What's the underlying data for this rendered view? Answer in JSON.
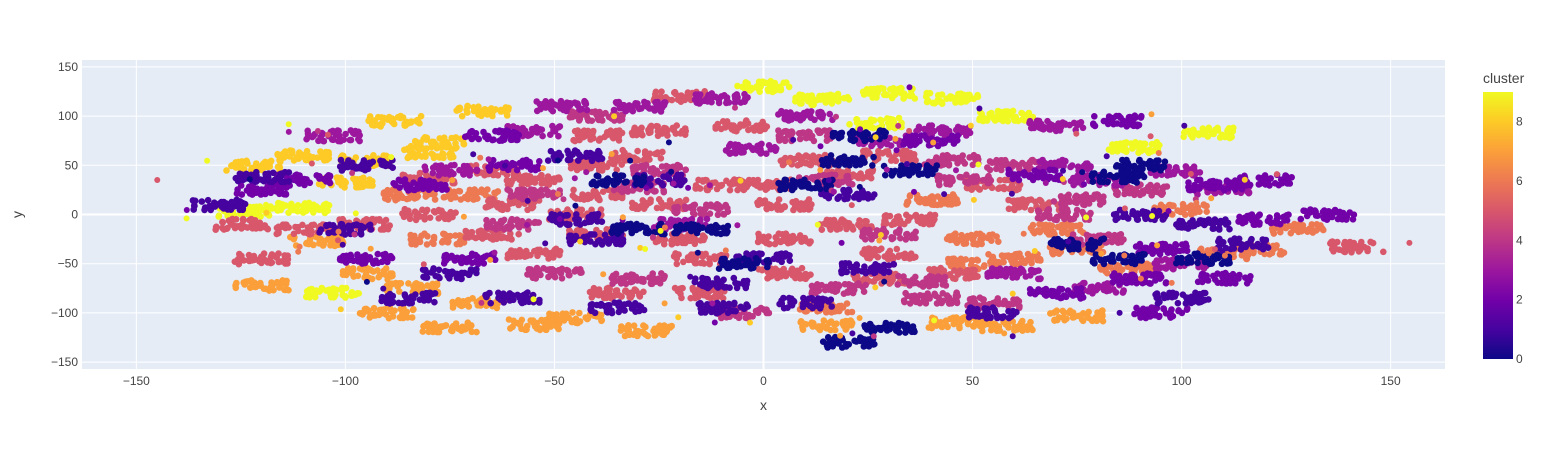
{
  "chart_data": {
    "type": "scatter",
    "xlabel": "x",
    "ylabel": "y",
    "xlim": [
      -163,
      163
    ],
    "ylim": [
      -157,
      157
    ],
    "xticks": [
      -150,
      -100,
      -50,
      0,
      50,
      100,
      150
    ],
    "yticks": [
      -150,
      -100,
      -50,
      0,
      50,
      100,
      150
    ],
    "grid": true,
    "plot_background": "#E5ECF6",
    "colorbar": {
      "title": "cluster",
      "range": [
        0,
        9
      ],
      "ticks": [
        0,
        2,
        4,
        6,
        8
      ],
      "colorscale": [
        "#0d0887",
        "#46039f",
        "#7201a8",
        "#9c179e",
        "#bd3786",
        "#d8576b",
        "#ed7953",
        "#fb9f3a",
        "#fdca26",
        "#f0f921"
      ]
    },
    "blobs": [
      {
        "x": 0,
        "y": 130,
        "c": 9
      },
      {
        "x": 14,
        "y": 117,
        "c": 9
      },
      {
        "x": 30,
        "y": 123,
        "c": 9
      },
      {
        "x": 45,
        "y": 118,
        "c": 9
      },
      {
        "x": 58,
        "y": 100,
        "c": 9
      },
      {
        "x": 27,
        "y": 93,
        "c": 9
      },
      {
        "x": 89,
        "y": 68,
        "c": 9
      },
      {
        "x": 106,
        "y": 83,
        "c": 9
      },
      {
        "x": -110,
        "y": 7,
        "c": 9
      },
      {
        "x": -103,
        "y": -79,
        "c": 9
      },
      {
        "x": -124,
        "y": 3,
        "c": 9
      },
      {
        "x": -67,
        "y": 105,
        "c": 8
      },
      {
        "x": -88,
        "y": 95,
        "c": 8
      },
      {
        "x": -110,
        "y": 60,
        "c": 8
      },
      {
        "x": -95,
        "y": 55,
        "c": 8
      },
      {
        "x": -78,
        "y": 73,
        "c": 8
      },
      {
        "x": -100,
        "y": 33,
        "c": 8
      },
      {
        "x": -122,
        "y": 50,
        "c": 8
      },
      {
        "x": -80,
        "y": 63,
        "c": 8
      },
      {
        "x": -28,
        "y": -118,
        "c": 7
      },
      {
        "x": -55,
        "y": -112,
        "c": 7
      },
      {
        "x": -68,
        "y": -90,
        "c": 7
      },
      {
        "x": -45,
        "y": -105,
        "c": 7
      },
      {
        "x": -75,
        "y": -115,
        "c": 7
      },
      {
        "x": -90,
        "y": -100,
        "c": 7
      },
      {
        "x": 46,
        "y": -110,
        "c": 7
      },
      {
        "x": 58,
        "y": -113,
        "c": 7
      },
      {
        "x": 75,
        "y": -103,
        "c": 7
      },
      {
        "x": -95,
        "y": -60,
        "c": 7
      },
      {
        "x": -107,
        "y": -27,
        "c": 7
      },
      {
        "x": 15,
        "y": -113,
        "c": 7
      },
      {
        "x": -120,
        "y": -72,
        "c": 7
      },
      {
        "x": -84,
        "y": -75,
        "c": 7
      },
      {
        "x": 118,
        "y": -35,
        "c": 6
      },
      {
        "x": 50,
        "y": -25,
        "c": 6
      },
      {
        "x": 60,
        "y": -45,
        "c": 6
      },
      {
        "x": 75,
        "y": -35,
        "c": 6
      },
      {
        "x": 50,
        "y": -50,
        "c": 6
      },
      {
        "x": 70,
        "y": -15,
        "c": 6
      },
      {
        "x": 100,
        "y": 5,
        "c": 6
      },
      {
        "x": -70,
        "y": 20,
        "c": 6
      },
      {
        "x": -85,
        "y": 20,
        "c": 6
      },
      {
        "x": 40,
        "y": 15,
        "c": 6
      },
      {
        "x": 128,
        "y": -15,
        "c": 6
      },
      {
        "x": 110,
        "y": -40,
        "c": 6
      },
      {
        "x": 15,
        "y": -95,
        "c": 6
      },
      {
        "x": -78,
        "y": -25,
        "c": 6
      },
      {
        "x": 87,
        "y": -55,
        "c": 6
      },
      {
        "x": -10,
        "y": 30,
        "c": 5
      },
      {
        "x": -25,
        "y": 10,
        "c": 5
      },
      {
        "x": 5,
        "y": 10,
        "c": 5
      },
      {
        "x": 20,
        "y": -10,
        "c": 5
      },
      {
        "x": -40,
        "y": 50,
        "c": 5
      },
      {
        "x": -55,
        "y": 35,
        "c": 5
      },
      {
        "x": 10,
        "y": 55,
        "c": 5
      },
      {
        "x": 35,
        "y": -5,
        "c": 5
      },
      {
        "x": -60,
        "y": 10,
        "c": 5
      },
      {
        "x": -45,
        "y": 0,
        "c": 5
      },
      {
        "x": -15,
        "y": -45,
        "c": 5
      },
      {
        "x": 5,
        "y": -25,
        "c": 5
      },
      {
        "x": -80,
        "y": 0,
        "c": 5
      },
      {
        "x": -95,
        "y": -10,
        "c": 5
      },
      {
        "x": -110,
        "y": -15,
        "c": 5
      },
      {
        "x": -125,
        "y": -10,
        "c": 5
      },
      {
        "x": -120,
        "y": -45,
        "c": 5
      },
      {
        "x": 142,
        "y": -33,
        "c": 5
      },
      {
        "x": -25,
        "y": 85,
        "c": 5
      },
      {
        "x": -5,
        "y": 90,
        "c": 5
      },
      {
        "x": -40,
        "y": 80,
        "c": 5
      },
      {
        "x": 20,
        "y": 40,
        "c": 5
      },
      {
        "x": 30,
        "y": 60,
        "c": 5
      },
      {
        "x": 55,
        "y": 30,
        "c": 5
      },
      {
        "x": 65,
        "y": 10,
        "c": 5
      },
      {
        "x": -15,
        "y": -80,
        "c": 5
      },
      {
        "x": 30,
        "y": -40,
        "c": 5
      },
      {
        "x": 5,
        "y": -60,
        "c": 5
      },
      {
        "x": -55,
        "y": -40,
        "c": 5
      },
      {
        "x": -35,
        "y": -80,
        "c": 5
      },
      {
        "x": -30,
        "y": 60,
        "c": 5
      },
      {
        "x": -20,
        "y": 120,
        "c": 5
      },
      {
        "x": 28,
        "y": -65,
        "c": 5
      },
      {
        "x": -65,
        "y": -20,
        "c": 5
      },
      {
        "x": -65,
        "y": 45,
        "c": 5
      },
      {
        "x": -80,
        "y": 37,
        "c": 5
      },
      {
        "x": -40,
        "y": 20,
        "c": 5
      },
      {
        "x": -40,
        "y": -20,
        "c": 5
      },
      {
        "x": 45,
        "y": -60,
        "c": 5
      },
      {
        "x": -20,
        "y": -25,
        "c": 5
      },
      {
        "x": 0,
        "y": 30,
        "c": 5
      },
      {
        "x": 48,
        "y": 35,
        "c": 4
      },
      {
        "x": 60,
        "y": 50,
        "c": 4
      },
      {
        "x": 75,
        "y": 15,
        "c": 4
      },
      {
        "x": 90,
        "y": 25,
        "c": 4
      },
      {
        "x": -30,
        "y": -65,
        "c": 4
      },
      {
        "x": -50,
        "y": -60,
        "c": 4
      },
      {
        "x": -55,
        "y": 20,
        "c": 4
      },
      {
        "x": 15,
        "y": 35,
        "c": 4
      },
      {
        "x": -25,
        "y": 45,
        "c": 4
      },
      {
        "x": 40,
        "y": -85,
        "c": 4
      },
      {
        "x": 55,
        "y": -90,
        "c": 4
      },
      {
        "x": -5,
        "y": -100,
        "c": 4
      },
      {
        "x": 30,
        "y": -20,
        "c": 4
      },
      {
        "x": 45,
        "y": 55,
        "c": 4
      },
      {
        "x": 80,
        "y": -25,
        "c": 4
      },
      {
        "x": 10,
        "y": 80,
        "c": 4
      },
      {
        "x": -30,
        "y": 28,
        "c": 4
      },
      {
        "x": -15,
        "y": 5,
        "c": 4
      },
      {
        "x": -60,
        "y": -10,
        "c": 4
      },
      {
        "x": 18,
        "y": -75,
        "c": 4
      },
      {
        "x": 72,
        "y": 0,
        "c": 4
      },
      {
        "x": 38,
        "y": -68,
        "c": 4
      },
      {
        "x": -40,
        "y": 100,
        "c": 4
      },
      {
        "x": -55,
        "y": 85,
        "c": 3
      },
      {
        "x": -30,
        "y": 110,
        "c": 3
      },
      {
        "x": -10,
        "y": 118,
        "c": 3
      },
      {
        "x": 10,
        "y": 100,
        "c": 3
      },
      {
        "x": 43,
        "y": 85,
        "c": 3
      },
      {
        "x": 70,
        "y": 90,
        "c": 3
      },
      {
        "x": 72,
        "y": 50,
        "c": 3
      },
      {
        "x": 98,
        "y": 45,
        "c": 3
      },
      {
        "x": 80,
        "y": -75,
        "c": 3
      },
      {
        "x": 100,
        "y": -50,
        "c": 3
      },
      {
        "x": 110,
        "y": 25,
        "c": 3
      },
      {
        "x": -103,
        "y": 80,
        "c": 3
      },
      {
        "x": -75,
        "y": 45,
        "c": 3
      },
      {
        "x": -48,
        "y": 110,
        "c": 3
      },
      {
        "x": -3,
        "y": 67,
        "c": 3
      },
      {
        "x": 60,
        "y": -60,
        "c": 3
      },
      {
        "x": -20,
        "y": -10,
        "c": 3
      },
      {
        "x": 28,
        "y": 75,
        "c": 3
      },
      {
        "x": 80,
        "y": 35,
        "c": 3
      },
      {
        "x": -120,
        "y": 25,
        "c": 2
      },
      {
        "x": -95,
        "y": -45,
        "c": 2
      },
      {
        "x": -70,
        "y": -45,
        "c": 2
      },
      {
        "x": 108,
        "y": 30,
        "c": 2
      },
      {
        "x": 120,
        "y": -5,
        "c": 2
      },
      {
        "x": 135,
        "y": 0,
        "c": 2
      },
      {
        "x": 90,
        "y": -65,
        "c": 2
      },
      {
        "x": 110,
        "y": -65,
        "c": 2
      },
      {
        "x": 85,
        "y": 95,
        "c": 2
      },
      {
        "x": 95,
        "y": -35,
        "c": 2
      },
      {
        "x": -82,
        "y": 30,
        "c": 2
      },
      {
        "x": 70,
        "y": -80,
        "c": 2
      },
      {
        "x": 65,
        "y": 40,
        "c": 2
      },
      {
        "x": 120,
        "y": 35,
        "c": 2
      },
      {
        "x": -110,
        "y": 35,
        "c": 2
      },
      {
        "x": 40,
        "y": 75,
        "c": 2
      },
      {
        "x": -60,
        "y": 50,
        "c": 2
      },
      {
        "x": 95,
        "y": -100,
        "c": 2
      },
      {
        "x": -65,
        "y": 80,
        "c": 2
      },
      {
        "x": -130,
        "y": 10,
        "c": 1
      },
      {
        "x": -100,
        "y": -15,
        "c": 1
      },
      {
        "x": -75,
        "y": -60,
        "c": 1
      },
      {
        "x": -60,
        "y": -85,
        "c": 1
      },
      {
        "x": -40,
        "y": -25,
        "c": 1
      },
      {
        "x": -25,
        "y": 35,
        "c": 1
      },
      {
        "x": -45,
        "y": 60,
        "c": 1
      },
      {
        "x": 90,
        "y": 0,
        "c": 1
      },
      {
        "x": 100,
        "y": -85,
        "c": 1
      },
      {
        "x": 105,
        "y": -10,
        "c": 1
      },
      {
        "x": -35,
        "y": -95,
        "c": 1
      },
      {
        "x": -10,
        "y": -70,
        "c": 1
      },
      {
        "x": 25,
        "y": -55,
        "c": 1
      },
      {
        "x": -85,
        "y": -85,
        "c": 1
      },
      {
        "x": -120,
        "y": 38,
        "c": 1
      },
      {
        "x": -45,
        "y": -5,
        "c": 1
      },
      {
        "x": 0,
        "y": -45,
        "c": 1
      },
      {
        "x": 20,
        "y": 20,
        "c": 1
      },
      {
        "x": 115,
        "y": -30,
        "c": 1
      },
      {
        "x": -95,
        "y": 50,
        "c": 1
      },
      {
        "x": 55,
        "y": -100,
        "c": 1
      },
      {
        "x": 10,
        "y": -90,
        "c": 1
      },
      {
        "x": -10,
        "y": -95,
        "c": 1
      },
      {
        "x": 30,
        "y": -115,
        "c": 0
      },
      {
        "x": 20,
        "y": 55,
        "c": 0
      },
      {
        "x": 35,
        "y": 45,
        "c": 0
      },
      {
        "x": -30,
        "y": -15,
        "c": 0
      },
      {
        "x": -15,
        "y": -15,
        "c": 0
      },
      {
        "x": 90,
        "y": 50,
        "c": 0
      },
      {
        "x": 85,
        "y": 38,
        "c": 0
      },
      {
        "x": 75,
        "y": -30,
        "c": 0
      },
      {
        "x": 85,
        "y": -45,
        "c": 0
      },
      {
        "x": -5,
        "y": -50,
        "c": 0
      },
      {
        "x": 10,
        "y": 30,
        "c": 0
      },
      {
        "x": 23,
        "y": 80,
        "c": 0
      },
      {
        "x": 20,
        "y": -130,
        "c": 0
      },
      {
        "x": -35,
        "y": 35,
        "c": 0
      },
      {
        "x": 105,
        "y": -45,
        "c": 0
      }
    ]
  }
}
